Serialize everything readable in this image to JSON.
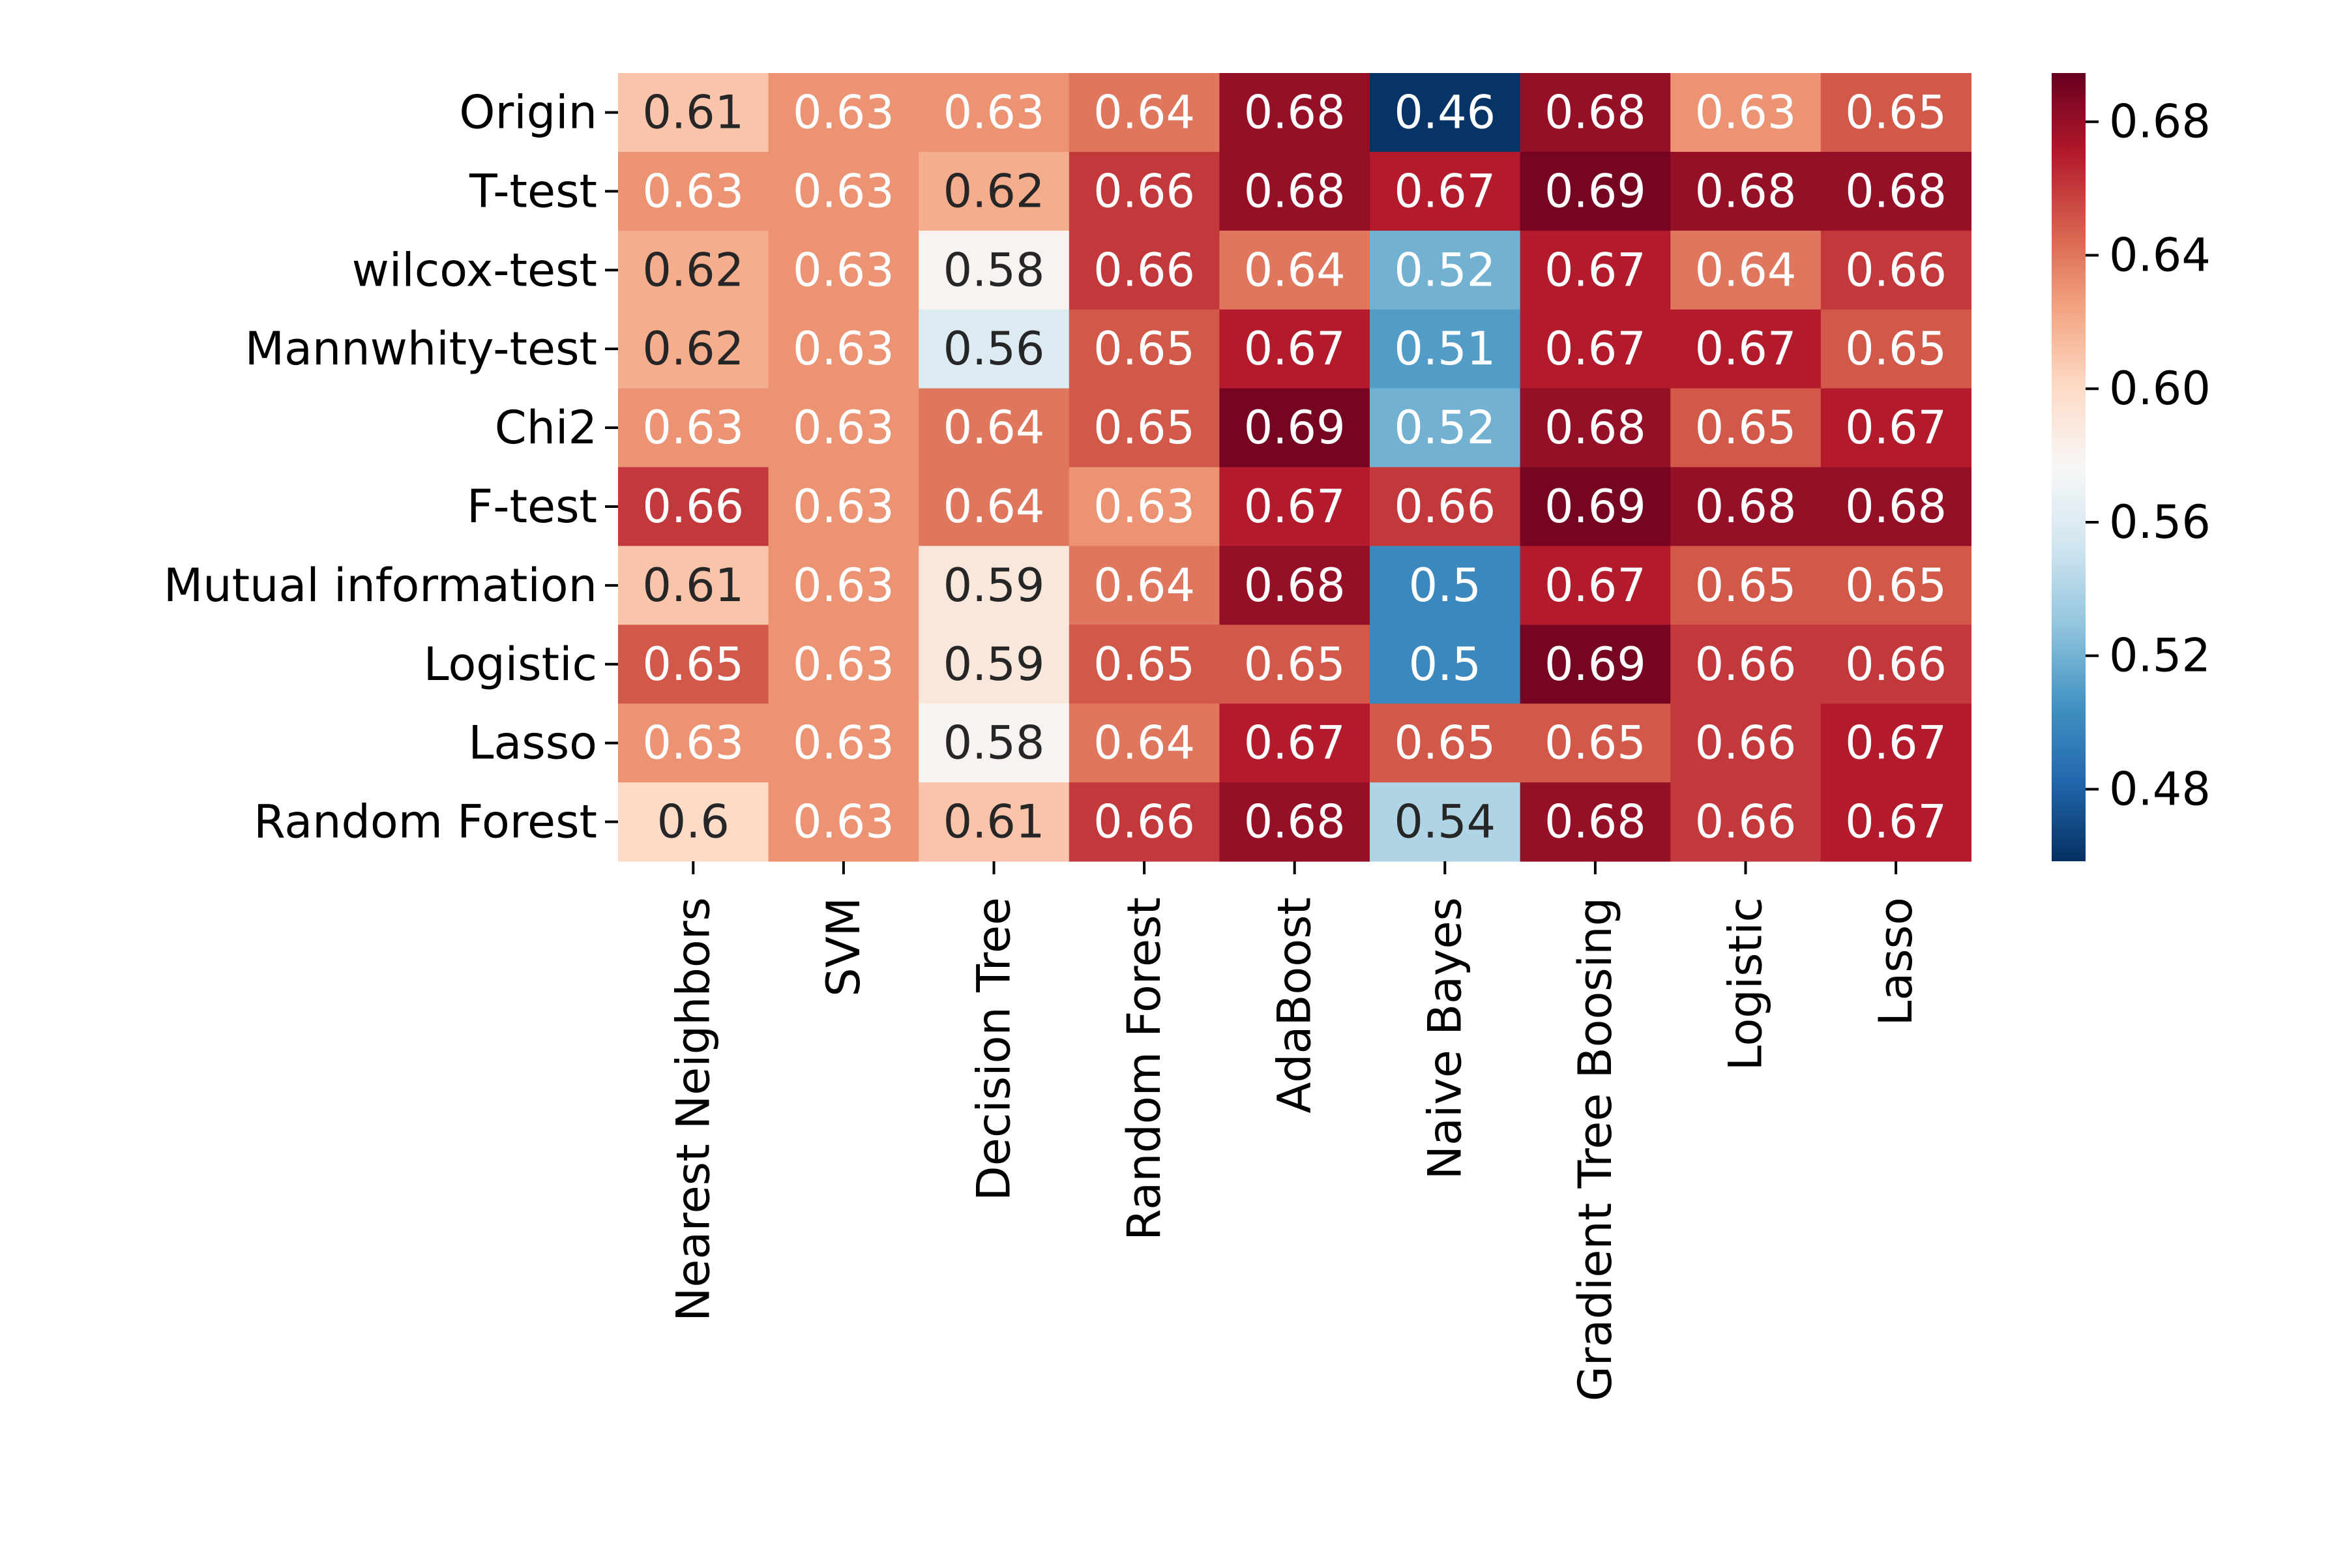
{
  "chart_data": {
    "type": "heatmap",
    "title": "",
    "xlabel": "",
    "ylabel": "",
    "rows": [
      "Origin",
      "T-test",
      "wilcox-test",
      "Mannwhity-test",
      "Chi2",
      "F-test",
      "Mutual information",
      "Logistic",
      "Lasso",
      "Random Forest"
    ],
    "columns": [
      "Nearest Neighbors",
      "SVM",
      "Decision Tree",
      "Random Forest",
      "AdaBoost",
      "Naive Bayes",
      "Gradient Tree Boosing",
      "Logistic",
      "Lasso"
    ],
    "values": [
      [
        0.61,
        0.63,
        0.63,
        0.64,
        0.68,
        0.46,
        0.68,
        0.63,
        0.65
      ],
      [
        0.63,
        0.63,
        0.62,
        0.66,
        0.68,
        0.67,
        0.69,
        0.68,
        0.68
      ],
      [
        0.62,
        0.63,
        0.58,
        0.66,
        0.64,
        0.52,
        0.67,
        0.64,
        0.66
      ],
      [
        0.62,
        0.63,
        0.56,
        0.65,
        0.67,
        0.51,
        0.67,
        0.67,
        0.65
      ],
      [
        0.63,
        0.63,
        0.64,
        0.65,
        0.69,
        0.52,
        0.68,
        0.65,
        0.67
      ],
      [
        0.66,
        0.63,
        0.64,
        0.63,
        0.67,
        0.66,
        0.69,
        0.68,
        0.68
      ],
      [
        0.61,
        0.63,
        0.59,
        0.64,
        0.68,
        0.5,
        0.67,
        0.65,
        0.65
      ],
      [
        0.65,
        0.63,
        0.59,
        0.65,
        0.65,
        0.5,
        0.69,
        0.66,
        0.66
      ],
      [
        0.63,
        0.63,
        0.58,
        0.64,
        0.67,
        0.65,
        0.65,
        0.66,
        0.67
      ],
      [
        0.6,
        0.63,
        0.61,
        0.66,
        0.68,
        0.54,
        0.68,
        0.66,
        0.67
      ]
    ],
    "cell_labels": [
      [
        "0.61",
        "0.63",
        "0.63",
        "0.64",
        "0.68",
        "0.46",
        "0.68",
        "0.63",
        "0.65"
      ],
      [
        "0.63",
        "0.63",
        "0.62",
        "0.66",
        "0.68",
        "0.67",
        "0.69",
        "0.68",
        "0.68"
      ],
      [
        "0.62",
        "0.63",
        "0.58",
        "0.66",
        "0.64",
        "0.52",
        "0.67",
        "0.64",
        "0.66"
      ],
      [
        "0.62",
        "0.63",
        "0.56",
        "0.65",
        "0.67",
        "0.51",
        "0.67",
        "0.67",
        "0.65"
      ],
      [
        "0.63",
        "0.63",
        "0.64",
        "0.65",
        "0.69",
        "0.52",
        "0.68",
        "0.65",
        "0.67"
      ],
      [
        "0.66",
        "0.63",
        "0.64",
        "0.63",
        "0.67",
        "0.66",
        "0.69",
        "0.68",
        "0.68"
      ],
      [
        "0.61",
        "0.63",
        "0.59",
        "0.64",
        "0.68",
        "0.5",
        "0.67",
        "0.65",
        "0.65"
      ],
      [
        "0.65",
        "0.63",
        "0.59",
        "0.65",
        "0.65",
        "0.5",
        "0.69",
        "0.66",
        "0.66"
      ],
      [
        "0.63",
        "0.63",
        "0.58",
        "0.64",
        "0.67",
        "0.65",
        "0.65",
        "0.66",
        "0.67"
      ],
      [
        "0.6",
        "0.63",
        "0.61",
        "0.66",
        "0.68",
        "0.54",
        "0.68",
        "0.66",
        "0.67"
      ]
    ],
    "colorbar": {
      "colormap": "RdBu_r",
      "range": [
        0.4584,
        0.6946
      ],
      "ticks": [
        0.48,
        0.52,
        0.56,
        0.6,
        0.64,
        0.68
      ],
      "tick_labels": [
        "0.48",
        "0.52",
        "0.56",
        "0.60",
        "0.64",
        "0.68"
      ]
    },
    "grid": false,
    "legend": "colorbar at right"
  }
}
